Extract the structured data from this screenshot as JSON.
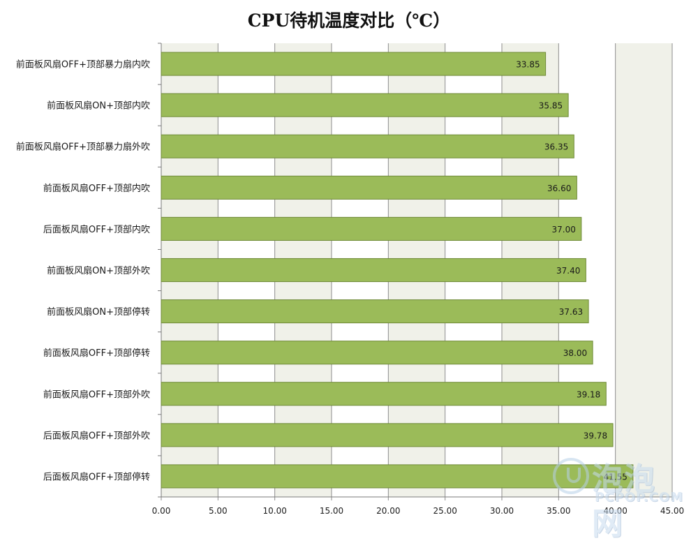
{
  "chart_data": {
    "type": "bar",
    "orientation": "horizontal",
    "title": "CPU待机温度对比（℃）",
    "categories": [
      "前面板风扇OFF+顶部暴力扇内吹",
      "前面板风扇ON+顶部内吹",
      "前面板风扇OFF+顶部暴力扇外吹",
      "前面板风扇OFF+顶部内吹",
      "后面板风扇OFF+顶部内吹",
      "前面板风扇ON+顶部外吹",
      "前面板风扇ON+顶部停转",
      "前面板风扇OFF+顶部停转",
      "前面板风扇OFF+顶部外吹",
      "后面板风扇OFF+顶部外吹",
      "后面板风扇OFF+顶部停转"
    ],
    "values": [
      33.85,
      35.85,
      36.35,
      36.6,
      37.0,
      37.4,
      37.63,
      38.0,
      39.18,
      39.78,
      41.55
    ],
    "data_labels": [
      "33.85",
      "35.85",
      "36.35",
      "36.60",
      "37.00",
      "37.40",
      "37.63",
      "38.00",
      "39.18",
      "39.78",
      "41.55"
    ],
    "xlim": [
      0,
      45
    ],
    "x_ticks": [
      "0.00",
      "5.00",
      "10.00",
      "15.00",
      "20.00",
      "25.00",
      "30.00",
      "35.00",
      "40.00",
      "45.00"
    ],
    "grid": true,
    "bar_color": "#9bbb59",
    "bar_edge_color": "#6f8a38",
    "band_color": "#f0f1e9"
  },
  "watermark": {
    "cn": "泡泡网",
    "en": "PCPOP.COM"
  }
}
